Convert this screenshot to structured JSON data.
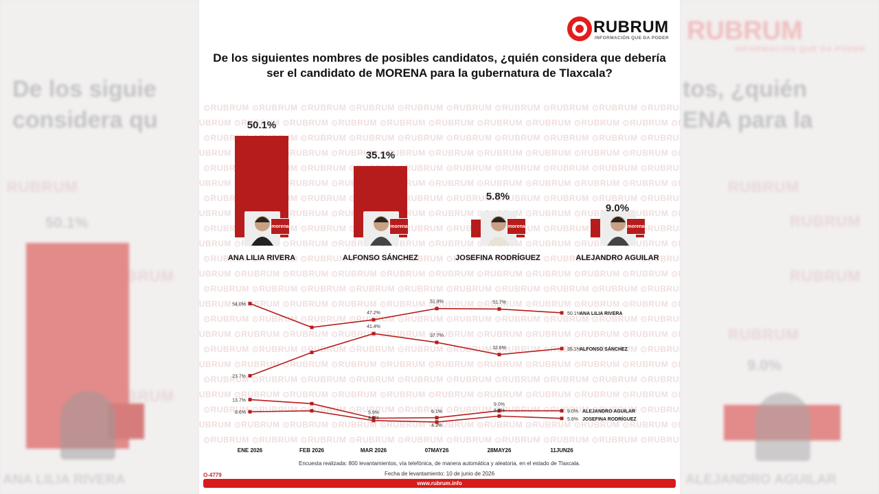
{
  "brand": {
    "logo_text": "RUBRUM",
    "tagline": "INFORMACIÓN QUE DA PODER",
    "watermark": "RUBRUM",
    "url": "www.rubrum.info",
    "code": "O-4779",
    "accent": "#b71c1c",
    "logo_red": "#e41c1c"
  },
  "question": "De los siguientes nombres de posibles candidatos, ¿quién considera que debería ser el candidato de MORENA para la gubernatura de Tlaxcala?",
  "background": {
    "left_title_1": "De los siguie",
    "left_title_2": "considera qu",
    "left_pct": "50.1%",
    "left_name": "ANA LILIA RIVERA",
    "right_title_1": "tos, ¿quién",
    "right_title_2": "ENA para la",
    "right_pct": "9.0%",
    "right_name": "ALEJANDRO AGUILAR"
  },
  "party_badge": "morena",
  "candidates": [
    {
      "name": "ANA LILIA RIVERA",
      "value": 50.1,
      "label": "50.1%"
    },
    {
      "name": "ALFONSO SÁNCHEZ",
      "value": 35.1,
      "label": "35.1%"
    },
    {
      "name": "JOSEFINA RODRÍGUEZ",
      "value": 5.8,
      "label": "5.8%"
    },
    {
      "name": "ALEJANDRO AGUILAR",
      "value": 9.0,
      "label": "9.0%"
    }
  ],
  "chart_data": [
    {
      "type": "bar",
      "title": "De los siguientes nombres de posibles candidatos, ¿quién considera que debería ser el candidato de MORENA para la gubernatura de Tlaxcala?",
      "categories": [
        "ANA LILIA RIVERA",
        "ALFONSO SÁNCHEZ",
        "JOSEFINA RODRÍGUEZ",
        "ALEJANDRO AGUILAR"
      ],
      "values": [
        50.1,
        35.1,
        5.8,
        9.0
      ],
      "data_labels": [
        "50.1%",
        "35.1%",
        "5.8%",
        "9.0%"
      ]
    },
    {
      "type": "line",
      "categories": [
        "ENE 2026",
        "FEB 2026",
        "MAR 2026",
        "07MAY26",
        "28MAY26",
        "11JUN26"
      ],
      "ylim": [
        0,
        60
      ],
      "series": [
        {
          "name": "ANA LILIA RIVERA",
          "values": [
            54.0,
            44.0,
            47.2,
            51.9,
            51.7,
            50.1
          ],
          "labels": [
            "54.0%",
            "",
            "47.2%",
            "51.9%",
            "51.7%",
            "50.1%"
          ]
        },
        {
          "name": "ALFONSO SÁNCHEZ",
          "values": [
            23.7,
            33.5,
            41.4,
            37.7,
            32.6,
            35.1
          ],
          "labels": [
            "23.7%",
            "",
            "41.4%",
            "37.7%",
            "32.6%",
            "35.1%"
          ]
        },
        {
          "name": "ALEJANDRO AGUILAR",
          "values": [
            13.7,
            12.0,
            5.9,
            6.1,
            9.0,
            9.0
          ],
          "labels": [
            "13.7%",
            "",
            "5.9%",
            "6.1%",
            "9.0%",
            "9.0%"
          ]
        },
        {
          "name": "JOSEFINA RODRÍGUEZ",
          "values": [
            8.6,
            9.0,
            4.9,
            4.3,
            6.8,
            5.8
          ],
          "labels": [
            "8.6%",
            "",
            "4.9%",
            "4.3%",
            "6.8%",
            "5.8%"
          ]
        }
      ]
    }
  ],
  "footer": {
    "methodology": "Encuesta realizada: 800 levantamientos, vía telefónica, de manera automática y aleatoria, en el estado de Tlaxcala.",
    "date": "Fecha de levantamiento: 10 de junio de 2026"
  }
}
